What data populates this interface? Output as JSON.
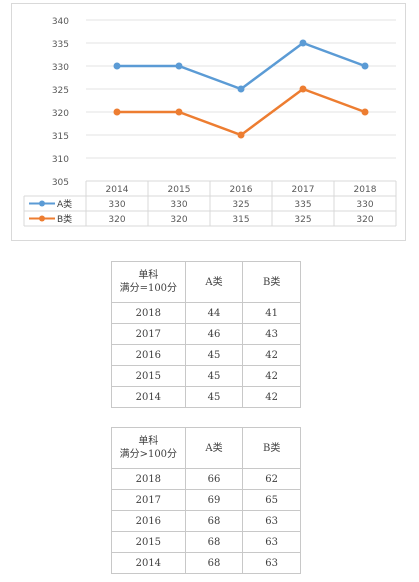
{
  "chart_data": {
    "type": "line",
    "categories": [
      "2014",
      "2015",
      "2016",
      "2017",
      "2018"
    ],
    "series": [
      {
        "name": "A类",
        "values": [
          330,
          330,
          325,
          335,
          330
        ],
        "color": "#5b9bd5"
      },
      {
        "name": "B类",
        "values": [
          320,
          320,
          315,
          325,
          320
        ],
        "color": "#ed7d31"
      }
    ],
    "y_ticks": [
      "340",
      "335",
      "330",
      "325",
      "320",
      "315",
      "310",
      "305"
    ],
    "ylim": [
      305,
      340
    ],
    "grid": true,
    "legend": "data-table-left"
  },
  "tables": [
    {
      "header": {
        "line1": "单科",
        "line2": "满分=100分",
        "col_a": "A类",
        "col_b": "B类"
      },
      "rows": [
        {
          "year": "2018",
          "a": "44",
          "b": "41"
        },
        {
          "year": "2017",
          "a": "46",
          "b": "43"
        },
        {
          "year": "2016",
          "a": "45",
          "b": "42"
        },
        {
          "year": "2015",
          "a": "45",
          "b": "42"
        },
        {
          "year": "2014",
          "a": "45",
          "b": "42"
        }
      ]
    },
    {
      "header": {
        "line1": "单科",
        "line2": "满分>100分",
        "col_a": "A类",
        "col_b": "B类"
      },
      "rows": [
        {
          "year": "2018",
          "a": "66",
          "b": "62"
        },
        {
          "year": "2017",
          "a": "69",
          "b": "65"
        },
        {
          "year": "2016",
          "a": "68",
          "b": "63"
        },
        {
          "year": "2015",
          "a": "68",
          "b": "63"
        },
        {
          "year": "2014",
          "a": "68",
          "b": "63"
        }
      ]
    }
  ]
}
